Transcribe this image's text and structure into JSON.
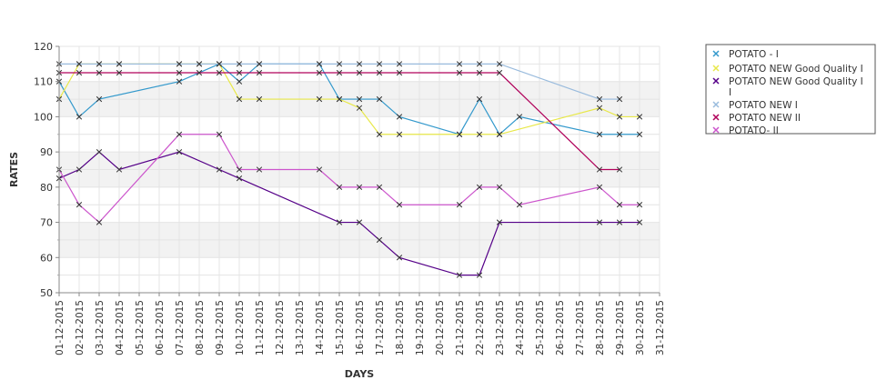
{
  "chart_data": {
    "type": "line",
    "title": "",
    "xlabel": "DAYS",
    "ylabel": "RATES",
    "ylim": [
      50,
      120
    ],
    "yticks": [
      "50",
      "60",
      "70",
      "80",
      "90",
      "100",
      "110",
      "120"
    ],
    "x": [
      "01-12-2015",
      "02-12-2015",
      "03-12-2015",
      "04-12-2015",
      "05-12-2015",
      "06-12-2015",
      "07-12-2015",
      "08-12-2015",
      "09-12-2015",
      "10-12-2015",
      "11-12-2015",
      "12-12-2015",
      "13-12-2015",
      "14-12-2015",
      "15-12-2015",
      "16-12-2015",
      "17-12-2015",
      "18-12-2015",
      "19-12-2015",
      "20-12-2015",
      "21-12-2015",
      "22-12-2015",
      "23-12-2015",
      "24-12-2015",
      "25-12-2015",
      "26-12-2015",
      "27-12-2015",
      "28-12-2015",
      "29-12-2015",
      "30-12-2015",
      "31-12-2015"
    ],
    "grid": true,
    "legend_position": "right",
    "series": [
      {
        "name": "POTATO - I",
        "color": "#3399cc",
        "points": [
          [
            "01-12-2015",
            110
          ],
          [
            "02-12-2015",
            100
          ],
          [
            "03-12-2015",
            105
          ],
          [
            "07-12-2015",
            110
          ],
          [
            "09-12-2015",
            115
          ],
          [
            "10-12-2015",
            110
          ],
          [
            "11-12-2015",
            115
          ],
          [
            "14-12-2015",
            115
          ],
          [
            "15-12-2015",
            105
          ],
          [
            "16-12-2015",
            105
          ],
          [
            "17-12-2015",
            105
          ],
          [
            "18-12-2015",
            100
          ],
          [
            "21-12-2015",
            95
          ],
          [
            "22-12-2015",
            105
          ],
          [
            "23-12-2015",
            95
          ],
          [
            "24-12-2015",
            100
          ],
          [
            "28-12-2015",
            95
          ],
          [
            "29-12-2015",
            95
          ],
          [
            "30-12-2015",
            95
          ]
        ]
      },
      {
        "name": "POTATO NEW Good Quality I",
        "color": "#e8e84a",
        "points": [
          [
            "01-12-2015",
            105
          ],
          [
            "02-12-2015",
            115
          ],
          [
            "03-12-2015",
            115
          ],
          [
            "04-12-2015",
            115
          ],
          [
            "07-12-2015",
            115
          ],
          [
            "08-12-2015",
            115
          ],
          [
            "09-12-2015",
            115
          ],
          [
            "10-12-2015",
            105
          ],
          [
            "11-12-2015",
            105
          ],
          [
            "14-12-2015",
            105
          ],
          [
            "15-12-2015",
            105
          ],
          [
            "16-12-2015",
            102.5
          ],
          [
            "17-12-2015",
            95
          ],
          [
            "18-12-2015",
            95
          ],
          [
            "21-12-2015",
            95
          ],
          [
            "22-12-2015",
            95
          ],
          [
            "23-12-2015",
            95
          ],
          [
            "28-12-2015",
            102.5
          ],
          [
            "29-12-2015",
            100
          ],
          [
            "30-12-2015",
            100
          ]
        ]
      },
      {
        "name": "POTATO NEW Good Quality I I",
        "color": "#550088",
        "points": [
          [
            "01-12-2015",
            82.5
          ],
          [
            "02-12-2015",
            85
          ],
          [
            "03-12-2015",
            90
          ],
          [
            "04-12-2015",
            85
          ],
          [
            "07-12-2015",
            90
          ],
          [
            "09-12-2015",
            85
          ],
          [
            "10-12-2015",
            82.5
          ],
          [
            "15-12-2015",
            70
          ],
          [
            "16-12-2015",
            70
          ],
          [
            "17-12-2015",
            65
          ],
          [
            "18-12-2015",
            60
          ],
          [
            "21-12-2015",
            55
          ],
          [
            "22-12-2015",
            55
          ],
          [
            "23-12-2015",
            70
          ],
          [
            "28-12-2015",
            70
          ],
          [
            "29-12-2015",
            70
          ],
          [
            "30-12-2015",
            70
          ]
        ]
      },
      {
        "name": "POTATO NEW I",
        "color": "#99bbdd",
        "points": [
          [
            "01-12-2015",
            115
          ],
          [
            "02-12-2015",
            115
          ],
          [
            "03-12-2015",
            115
          ],
          [
            "04-12-2015",
            115
          ],
          [
            "07-12-2015",
            115
          ],
          [
            "08-12-2015",
            115
          ],
          [
            "09-12-2015",
            115
          ],
          [
            "10-12-2015",
            115
          ],
          [
            "11-12-2015",
            115
          ],
          [
            "14-12-2015",
            115
          ],
          [
            "15-12-2015",
            115
          ],
          [
            "16-12-2015",
            115
          ],
          [
            "17-12-2015",
            115
          ],
          [
            "18-12-2015",
            115
          ],
          [
            "21-12-2015",
            115
          ],
          [
            "22-12-2015",
            115
          ],
          [
            "23-12-2015",
            115
          ],
          [
            "28-12-2015",
            105
          ],
          [
            "29-12-2015",
            105
          ]
        ]
      },
      {
        "name": "POTATO NEW II",
        "color": "#b0005a",
        "points": [
          [
            "01-12-2015",
            112.5
          ],
          [
            "02-12-2015",
            112.5
          ],
          [
            "03-12-2015",
            112.5
          ],
          [
            "04-12-2015",
            112.5
          ],
          [
            "07-12-2015",
            112.5
          ],
          [
            "08-12-2015",
            112.5
          ],
          [
            "09-12-2015",
            112.5
          ],
          [
            "10-12-2015",
            112.5
          ],
          [
            "11-12-2015",
            112.5
          ],
          [
            "14-12-2015",
            112.5
          ],
          [
            "15-12-2015",
            112.5
          ],
          [
            "16-12-2015",
            112.5
          ],
          [
            "17-12-2015",
            112.5
          ],
          [
            "18-12-2015",
            112.5
          ],
          [
            "21-12-2015",
            112.5
          ],
          [
            "22-12-2015",
            112.5
          ],
          [
            "23-12-2015",
            112.5
          ],
          [
            "28-12-2015",
            85
          ],
          [
            "29-12-2015",
            85
          ]
        ]
      },
      {
        "name": "POTATO- II",
        "color": "#cc55cc",
        "points": [
          [
            "01-12-2015",
            85
          ],
          [
            "02-12-2015",
            75
          ],
          [
            "03-12-2015",
            70
          ],
          [
            "07-12-2015",
            95
          ],
          [
            "09-12-2015",
            95
          ],
          [
            "10-12-2015",
            85
          ],
          [
            "11-12-2015",
            85
          ],
          [
            "14-12-2015",
            85
          ],
          [
            "15-12-2015",
            80
          ],
          [
            "16-12-2015",
            80
          ],
          [
            "17-12-2015",
            80
          ],
          [
            "18-12-2015",
            75
          ],
          [
            "21-12-2015",
            75
          ],
          [
            "22-12-2015",
            80
          ],
          [
            "23-12-2015",
            80
          ],
          [
            "24-12-2015",
            75
          ],
          [
            "28-12-2015",
            80
          ],
          [
            "29-12-2015",
            75
          ],
          [
            "30-12-2015",
            75
          ]
        ]
      }
    ]
  }
}
